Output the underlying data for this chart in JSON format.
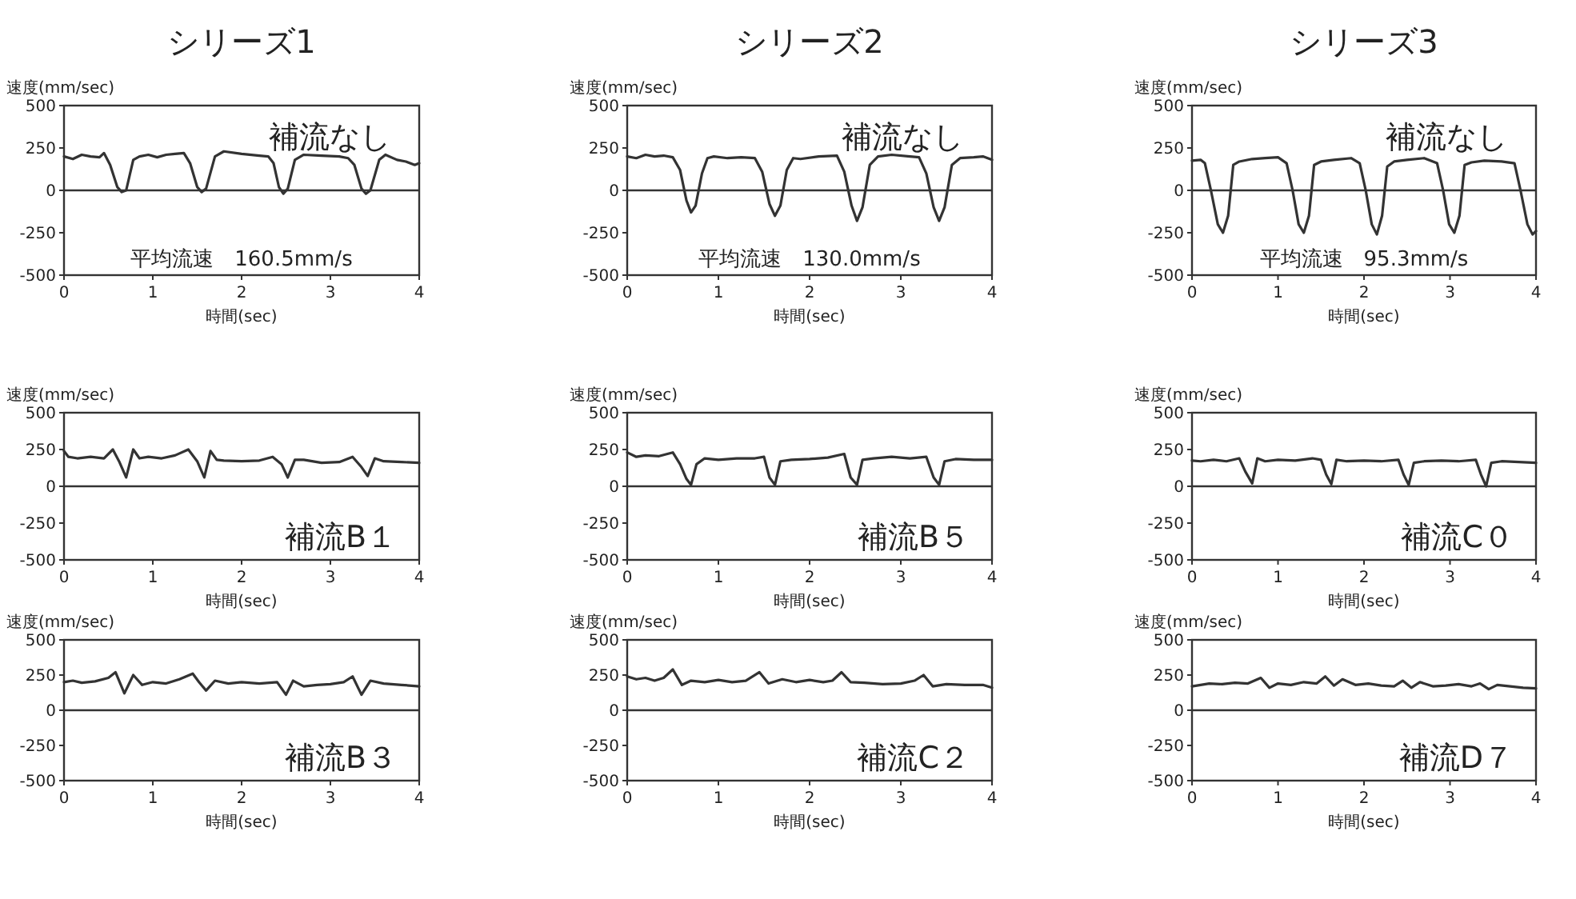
{
  "chart_data": [
    {
      "type": "line",
      "title": "シリーズ1",
      "ylabel": "速度(mm/sec)",
      "xlabel": "時間(sec)",
      "annotations": [
        "補流なし",
        "平均流速　160.5mm/s"
      ],
      "xlim": [
        0,
        4
      ],
      "ylim": [
        -500,
        500
      ],
      "xticks": [
        0,
        1,
        2,
        3,
        4
      ],
      "yticks": [
        -500,
        -250,
        0,
        250,
        500
      ],
      "ref_lines": [
        {
          "axis": "y",
          "value": 0
        }
      ],
      "series": [
        {
          "color": "#333333",
          "x": [
            0,
            0.1,
            0.2,
            0.3,
            0.4,
            0.45,
            0.52,
            0.6,
            0.65,
            0.7,
            0.78,
            0.85,
            0.95,
            1.05,
            1.15,
            1.25,
            1.35,
            1.42,
            1.5,
            1.55,
            1.6,
            1.7,
            1.8,
            2.0,
            2.2,
            2.3,
            2.36,
            2.42,
            2.47,
            2.52,
            2.6,
            2.7,
            2.9,
            3.1,
            3.2,
            3.27,
            3.35,
            3.4,
            3.45,
            3.55,
            3.62,
            3.75,
            3.85,
            3.95,
            4.0
          ],
          "values": [
            200,
            185,
            210,
            200,
            195,
            220,
            150,
            20,
            -10,
            0,
            180,
            200,
            210,
            195,
            210,
            215,
            220,
            160,
            20,
            -10,
            10,
            200,
            230,
            215,
            205,
            200,
            160,
            20,
            -20,
            10,
            180,
            210,
            205,
            200,
            190,
            150,
            10,
            -20,
            0,
            180,
            210,
            180,
            170,
            150,
            160
          ]
        }
      ]
    },
    {
      "type": "line",
      "title": "シリーズ2",
      "ylabel": "速度(mm/sec)",
      "xlabel": "時間(sec)",
      "annotations": [
        "補流なし",
        "平均流速　130.0mm/s"
      ],
      "xlim": [
        0,
        4
      ],
      "ylim": [
        -500,
        500
      ],
      "xticks": [
        0,
        1,
        2,
        3,
        4
      ],
      "yticks": [
        -500,
        -250,
        0,
        250,
        500
      ],
      "ref_lines": [
        {
          "axis": "y",
          "value": 0
        }
      ],
      "series": [
        {
          "color": "#333333",
          "x": [
            0,
            0.1,
            0.2,
            0.3,
            0.4,
            0.5,
            0.58,
            0.65,
            0.7,
            0.75,
            0.82,
            0.88,
            0.95,
            1.1,
            1.25,
            1.4,
            1.48,
            1.56,
            1.62,
            1.68,
            1.75,
            1.82,
            1.9,
            2.1,
            2.3,
            2.38,
            2.46,
            2.52,
            2.58,
            2.66,
            2.75,
            2.9,
            3.1,
            3.2,
            3.28,
            3.36,
            3.42,
            3.48,
            3.56,
            3.65,
            3.8,
            3.9,
            4.0
          ],
          "values": [
            200,
            190,
            210,
            200,
            205,
            195,
            120,
            -60,
            -130,
            -90,
            100,
            190,
            200,
            190,
            195,
            190,
            110,
            -80,
            -150,
            -90,
            120,
            190,
            185,
            200,
            205,
            110,
            -90,
            -180,
            -100,
            150,
            200,
            210,
            200,
            195,
            100,
            -100,
            -180,
            -100,
            150,
            190,
            195,
            200,
            180
          ]
        }
      ]
    },
    {
      "type": "line",
      "title": "シリーズ3",
      "ylabel": "速度(mm/sec)",
      "xlabel": "時間(sec)",
      "annotations": [
        "補流なし",
        "平均流速　95.3mm/s"
      ],
      "xlim": [
        0,
        4
      ],
      "ylim": [
        -500,
        500
      ],
      "xticks": [
        0,
        1,
        2,
        3,
        4
      ],
      "yticks": [
        -500,
        -250,
        0,
        250,
        500
      ],
      "ref_lines": [
        {
          "axis": "y",
          "value": 0
        }
      ],
      "series": [
        {
          "color": "#333333",
          "x": [
            0,
            0.1,
            0.15,
            0.22,
            0.3,
            0.36,
            0.42,
            0.48,
            0.55,
            0.7,
            0.85,
            1.0,
            1.1,
            1.17,
            1.24,
            1.3,
            1.36,
            1.42,
            1.5,
            1.65,
            1.85,
            1.95,
            2.02,
            2.09,
            2.15,
            2.21,
            2.27,
            2.35,
            2.5,
            2.7,
            2.85,
            2.92,
            2.99,
            3.05,
            3.11,
            3.17,
            3.25,
            3.4,
            3.6,
            3.75,
            3.82,
            3.9,
            3.96,
            4.0
          ],
          "values": [
            175,
            180,
            160,
            0,
            -200,
            -250,
            -150,
            150,
            170,
            185,
            190,
            195,
            160,
            0,
            -200,
            -250,
            -150,
            150,
            170,
            180,
            190,
            160,
            0,
            -200,
            -260,
            -150,
            140,
            170,
            180,
            190,
            160,
            0,
            -200,
            -250,
            -150,
            150,
            165,
            175,
            170,
            160,
            0,
            -200,
            -260,
            -240
          ]
        }
      ]
    },
    {
      "type": "line",
      "ylabel": "速度(mm/sec)",
      "xlabel": "時間(sec)",
      "annotations": [
        "補流B１"
      ],
      "xlim": [
        0,
        4
      ],
      "ylim": [
        -500,
        500
      ],
      "xticks": [
        0,
        1,
        2,
        3,
        4
      ],
      "yticks": [
        -500,
        -250,
        0,
        250,
        500
      ],
      "ref_lines": [
        {
          "axis": "y",
          "value": 0
        }
      ],
      "series": [
        {
          "color": "#333333",
          "x": [
            0,
            0.05,
            0.15,
            0.3,
            0.45,
            0.55,
            0.62,
            0.7,
            0.78,
            0.85,
            0.95,
            1.1,
            1.25,
            1.4,
            1.5,
            1.58,
            1.65,
            1.72,
            1.8,
            2.0,
            2.2,
            2.35,
            2.45,
            2.52,
            2.6,
            2.7,
            2.9,
            3.1,
            3.25,
            3.35,
            3.42,
            3.5,
            3.6,
            3.8,
            4.0
          ],
          "values": [
            240,
            200,
            190,
            200,
            190,
            250,
            170,
            60,
            250,
            190,
            200,
            190,
            210,
            250,
            170,
            60,
            240,
            180,
            175,
            170,
            175,
            200,
            150,
            60,
            180,
            180,
            160,
            165,
            200,
            130,
            70,
            190,
            170,
            165,
            160
          ]
        }
      ]
    },
    {
      "type": "line",
      "ylabel": "速度(mm/sec)",
      "xlabel": "時間(sec)",
      "annotations": [
        "補流B５"
      ],
      "xlim": [
        0,
        4
      ],
      "ylim": [
        -500,
        500
      ],
      "xticks": [
        0,
        1,
        2,
        3,
        4
      ],
      "yticks": [
        -500,
        -250,
        0,
        250,
        500
      ],
      "ref_lines": [
        {
          "axis": "y",
          "value": 0
        }
      ],
      "series": [
        {
          "color": "#333333",
          "x": [
            0,
            0.1,
            0.2,
            0.35,
            0.5,
            0.58,
            0.65,
            0.7,
            0.76,
            0.85,
            1.0,
            1.2,
            1.4,
            1.5,
            1.56,
            1.62,
            1.68,
            1.8,
            2.0,
            2.2,
            2.38,
            2.45,
            2.52,
            2.58,
            2.7,
            2.9,
            3.1,
            3.28,
            3.36,
            3.42,
            3.48,
            3.6,
            3.8,
            4.0
          ],
          "values": [
            230,
            200,
            210,
            205,
            230,
            150,
            50,
            10,
            150,
            190,
            180,
            190,
            190,
            200,
            60,
            10,
            170,
            180,
            185,
            195,
            220,
            60,
            10,
            180,
            190,
            200,
            190,
            200,
            60,
            10,
            170,
            185,
            180,
            180
          ]
        }
      ]
    },
    {
      "type": "line",
      "ylabel": "速度(mm/sec)",
      "xlabel": "時間(sec)",
      "annotations": [
        "補流C０"
      ],
      "xlim": [
        0,
        4
      ],
      "ylim": [
        -500,
        500
      ],
      "xticks": [
        0,
        1,
        2,
        3,
        4
      ],
      "yticks": [
        -500,
        -250,
        0,
        250,
        500
      ],
      "ref_lines": [
        {
          "axis": "y",
          "value": 0
        }
      ],
      "series": [
        {
          "color": "#333333",
          "x": [
            0,
            0.1,
            0.25,
            0.4,
            0.55,
            0.62,
            0.7,
            0.76,
            0.85,
            1.0,
            1.2,
            1.4,
            1.5,
            1.56,
            1.62,
            1.68,
            1.8,
            2.0,
            2.2,
            2.4,
            2.46,
            2.52,
            2.58,
            2.7,
            2.9,
            3.1,
            3.3,
            3.36,
            3.42,
            3.48,
            3.6,
            3.8,
            4.0
          ],
          "values": [
            175,
            170,
            180,
            170,
            190,
            100,
            20,
            190,
            170,
            180,
            175,
            190,
            180,
            80,
            15,
            180,
            170,
            175,
            170,
            180,
            80,
            10,
            160,
            170,
            175,
            170,
            180,
            80,
            0,
            160,
            170,
            165,
            160
          ]
        }
      ]
    },
    {
      "type": "line",
      "ylabel": "速度(mm/sec)",
      "xlabel": "時間(sec)",
      "annotations": [
        "補流B３"
      ],
      "xlim": [
        0,
        4
      ],
      "ylim": [
        -500,
        500
      ],
      "xticks": [
        0,
        1,
        2,
        3,
        4
      ],
      "yticks": [
        -500,
        -250,
        0,
        250,
        500
      ],
      "ref_lines": [
        {
          "axis": "y",
          "value": 0
        }
      ],
      "series": [
        {
          "color": "#333333",
          "x": [
            0,
            0.1,
            0.2,
            0.35,
            0.5,
            0.58,
            0.68,
            0.78,
            0.88,
            1.0,
            1.15,
            1.3,
            1.45,
            1.52,
            1.6,
            1.7,
            1.85,
            2.0,
            2.2,
            2.4,
            2.5,
            2.58,
            2.7,
            2.85,
            3.0,
            3.15,
            3.25,
            3.35,
            3.45,
            3.6,
            3.8,
            4.0
          ],
          "values": [
            200,
            210,
            195,
            205,
            230,
            270,
            120,
            250,
            180,
            200,
            190,
            220,
            260,
            200,
            140,
            210,
            190,
            200,
            190,
            200,
            110,
            210,
            170,
            180,
            185,
            200,
            240,
            110,
            210,
            190,
            180,
            170
          ]
        }
      ]
    },
    {
      "type": "line",
      "ylabel": "速度(mm/sec)",
      "xlabel": "時間(sec)",
      "annotations": [
        "補流C２"
      ],
      "xlim": [
        0,
        4
      ],
      "ylim": [
        -500,
        500
      ],
      "xticks": [
        0,
        1,
        2,
        3,
        4
      ],
      "yticks": [
        -500,
        -250,
        0,
        250,
        500
      ],
      "ref_lines": [
        {
          "axis": "y",
          "value": 0
        }
      ],
      "series": [
        {
          "color": "#333333",
          "x": [
            0,
            0.1,
            0.2,
            0.3,
            0.4,
            0.5,
            0.6,
            0.7,
            0.85,
            1.0,
            1.15,
            1.3,
            1.45,
            1.55,
            1.7,
            1.85,
            2.0,
            2.15,
            2.25,
            2.35,
            2.45,
            2.6,
            2.8,
            3.0,
            3.15,
            3.25,
            3.35,
            3.5,
            3.7,
            3.9,
            4.0
          ],
          "values": [
            240,
            220,
            230,
            210,
            230,
            290,
            180,
            210,
            200,
            215,
            200,
            210,
            270,
            190,
            220,
            200,
            215,
            200,
            210,
            270,
            200,
            195,
            185,
            190,
            210,
            250,
            170,
            185,
            180,
            180,
            160
          ]
        }
      ]
    },
    {
      "type": "line",
      "ylabel": "速度(mm/sec)",
      "xlabel": "時間(sec)",
      "annotations": [
        "補流D７"
      ],
      "xlim": [
        0,
        4
      ],
      "ylim": [
        -500,
        500
      ],
      "xticks": [
        0,
        1,
        2,
        3,
        4
      ],
      "yticks": [
        -500,
        -250,
        0,
        250,
        500
      ],
      "ref_lines": [
        {
          "axis": "y",
          "value": 0
        }
      ],
      "series": [
        {
          "color": "#333333",
          "x": [
            0,
            0.1,
            0.2,
            0.35,
            0.5,
            0.65,
            0.8,
            0.9,
            1.0,
            1.15,
            1.3,
            1.45,
            1.55,
            1.65,
            1.75,
            1.9,
            2.05,
            2.2,
            2.35,
            2.45,
            2.55,
            2.65,
            2.8,
            2.95,
            3.1,
            3.25,
            3.35,
            3.45,
            3.55,
            3.7,
            3.85,
            4.0
          ],
          "values": [
            170,
            180,
            190,
            185,
            195,
            190,
            230,
            160,
            190,
            180,
            200,
            190,
            240,
            175,
            220,
            180,
            190,
            175,
            170,
            210,
            160,
            200,
            170,
            175,
            185,
            170,
            190,
            150,
            180,
            170,
            160,
            155
          ]
        }
      ]
    }
  ]
}
